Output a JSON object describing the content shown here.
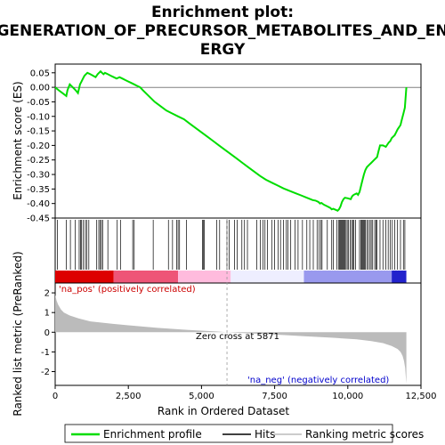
{
  "colors": {
    "enrichment": "#00dd00",
    "hits": "#000000",
    "ranking": "#bbbbbb",
    "pos_label": "#cc0000",
    "neg_label": "#0000cc",
    "zero_line": "#999999"
  },
  "chart_data": {
    "type": "line",
    "title_lines": [
      "Enrichment plot:",
      "GENERATION_OF_PRECURSOR_METABOLITES_AND_EN",
      "ERGY"
    ],
    "x_label": "Rank in Ordered Dataset",
    "x_range": [
      0,
      12500
    ],
    "x_ticks": [
      0,
      2500,
      5000,
      7500,
      10000,
      12500
    ],
    "x_tick_labels": [
      "0",
      "2,500",
      "5,000",
      "7,500",
      "10,000",
      "12,500"
    ],
    "es_panel": {
      "y_label": "Enrichment score (ES)",
      "y_range": [
        -0.45,
        0.08
      ],
      "y_ticks": [
        0.05,
        0.0,
        -0.05,
        -0.1,
        -0.15,
        -0.2,
        -0.25,
        -0.3,
        -0.35,
        -0.4,
        -0.45
      ],
      "y_tick_labels": [
        "0.05",
        "0.00",
        "-0.05",
        "-0.10",
        "-0.15",
        "-0.20",
        "-0.25",
        "-0.30",
        "-0.35",
        "-0.40",
        "-0.45"
      ],
      "series": [
        {
          "name": "Enrichment profile",
          "x": [
            0,
            120,
            250,
            380,
            420,
            500,
            600,
            700,
            780,
            850,
            900,
            950,
            1000,
            1050,
            1100,
            1200,
            1300,
            1380,
            1450,
            1500,
            1550,
            1600,
            1650,
            1700,
            1800,
            1900,
            2000,
            2100,
            2200,
            2300,
            2400,
            2500,
            2600,
            2700,
            2800,
            2900,
            3000,
            3200,
            3400,
            3600,
            3800,
            4000,
            4200,
            4400,
            4600,
            4800,
            5000,
            5200,
            5400,
            5600,
            5800,
            6000,
            6200,
            6400,
            6600,
            6800,
            7000,
            7200,
            7400,
            7600,
            7800,
            8000,
            8200,
            8400,
            8600,
            8800,
            8900,
            9000,
            9050,
            9100,
            9150,
            9200,
            9300,
            9400,
            9450,
            9500,
            9600,
            9650,
            9700,
            9750,
            9800,
            9850,
            9900,
            10000,
            10100,
            10150,
            10200,
            10300,
            10350,
            10400,
            10450,
            10500,
            10550,
            10600,
            10650,
            10700,
            10800,
            10900,
            11000,
            11050,
            11100,
            11200,
            11300,
            11400,
            11450,
            11500,
            11600,
            11650,
            11700,
            11800,
            11850,
            11900,
            11950,
            12000
          ],
          "y": [
            0.0,
            -0.01,
            -0.02,
            -0.03,
            -0.01,
            0.01,
            0.0,
            -0.01,
            -0.02,
            0.01,
            0.02,
            0.03,
            0.04,
            0.045,
            0.05,
            0.045,
            0.04,
            0.035,
            0.045,
            0.05,
            0.055,
            0.05,
            0.045,
            0.05,
            0.045,
            0.04,
            0.035,
            0.03,
            0.035,
            0.03,
            0.025,
            0.02,
            0.015,
            0.01,
            0.005,
            0.0,
            -0.01,
            -0.03,
            -0.05,
            -0.065,
            -0.08,
            -0.09,
            -0.1,
            -0.11,
            -0.125,
            -0.14,
            -0.155,
            -0.17,
            -0.185,
            -0.2,
            -0.215,
            -0.23,
            -0.245,
            -0.26,
            -0.275,
            -0.29,
            -0.305,
            -0.318,
            -0.328,
            -0.338,
            -0.348,
            -0.356,
            -0.364,
            -0.372,
            -0.38,
            -0.388,
            -0.39,
            -0.395,
            -0.4,
            -0.398,
            -0.402,
            -0.405,
            -0.41,
            -0.415,
            -0.42,
            -0.418,
            -0.422,
            -0.425,
            -0.42,
            -0.41,
            -0.395,
            -0.385,
            -0.38,
            -0.382,
            -0.385,
            -0.375,
            -0.37,
            -0.365,
            -0.37,
            -0.36,
            -0.34,
            -0.32,
            -0.3,
            -0.285,
            -0.275,
            -0.27,
            -0.26,
            -0.25,
            -0.24,
            -0.22,
            -0.2,
            -0.2,
            -0.205,
            -0.19,
            -0.185,
            -0.175,
            -0.165,
            -0.155,
            -0.145,
            -0.13,
            -0.11,
            -0.09,
            -0.07,
            0.0
          ]
        }
      ]
    },
    "hits_panel": {
      "legend_name": "Hits",
      "hit_positions": [
        80,
        380,
        520,
        680,
        820,
        870,
        900,
        960,
        1030,
        1080,
        1150,
        1420,
        1490,
        1540,
        1580,
        1620,
        1800,
        2120,
        2230,
        2650,
        2700,
        3350,
        3870,
        4010,
        4150,
        4200,
        4250,
        4490,
        5030,
        5070,
        5100,
        5520,
        5620,
        5870,
        5950,
        6130,
        6220,
        6380,
        6470,
        6570,
        6890,
        7010,
        7100,
        7170,
        7250,
        7400,
        7500,
        7620,
        7700,
        7800,
        7900,
        7950,
        8050,
        8200,
        8300,
        8450,
        8600,
        8700,
        8820,
        8950,
        9020,
        9080,
        9120,
        9300,
        9450,
        9500,
        9620,
        9680,
        9720,
        9750,
        9780,
        9810,
        9840,
        9870,
        9900,
        9940,
        9980,
        10020,
        10080,
        10130,
        10170,
        10210,
        10260,
        10400,
        10450,
        10480,
        10510,
        10540,
        10570,
        10600,
        10650,
        10700,
        10760,
        10800,
        10850,
        10920,
        10960,
        11000,
        11100,
        11200,
        11300,
        11380,
        11450,
        11520,
        11600,
        11700,
        11800,
        11900,
        11950
      ],
      "color_bar": {
        "stops": [
          "#dd0000",
          "#ee5577",
          "#ffbbdd",
          "#eeeeff",
          "#9999ee",
          "#2222cc"
        ],
        "break_ranks": [
          0,
          2000,
          4200,
          6000,
          8500,
          11500,
          12000
        ]
      }
    },
    "rank_panel": {
      "legend_name": "Ranking metric scores",
      "y_label": "Ranked list metric (PreRanked)",
      "y_range": [
        -2.7,
        2.5
      ],
      "y_ticks": [
        2,
        1,
        0,
        -1,
        -2
      ],
      "y_tick_labels": [
        "2",
        "1",
        "0",
        "-1",
        "-2"
      ],
      "x": [
        0,
        50,
        100,
        200,
        300,
        500,
        800,
        1200,
        1800,
        2500,
        3500,
        4500,
        5500,
        5871,
        6500,
        7500,
        8500,
        9500,
        10300,
        10800,
        11200,
        11500,
        11700,
        11800,
        11870,
        11920,
        11960,
        11990,
        12000
      ],
      "y": [
        1.9,
        1.6,
        1.4,
        1.15,
        1.0,
        0.85,
        0.7,
        0.55,
        0.45,
        0.35,
        0.22,
        0.12,
        0.04,
        0.0,
        -0.05,
        -0.12,
        -0.2,
        -0.28,
        -0.36,
        -0.45,
        -0.55,
        -0.7,
        -0.85,
        -1.0,
        -1.2,
        -1.45,
        -1.8,
        -2.4,
        -2.6
      ]
    },
    "annotations": {
      "pos_label": "'na_pos' (positively correlated)",
      "neg_label": "'na_neg' (negatively correlated)",
      "zero_cross_text": "Zero cross at 5871",
      "zero_cross_rank": 5871
    },
    "legend": {
      "items": [
        "Enrichment profile",
        "Hits",
        "Ranking metric scores"
      ]
    }
  }
}
